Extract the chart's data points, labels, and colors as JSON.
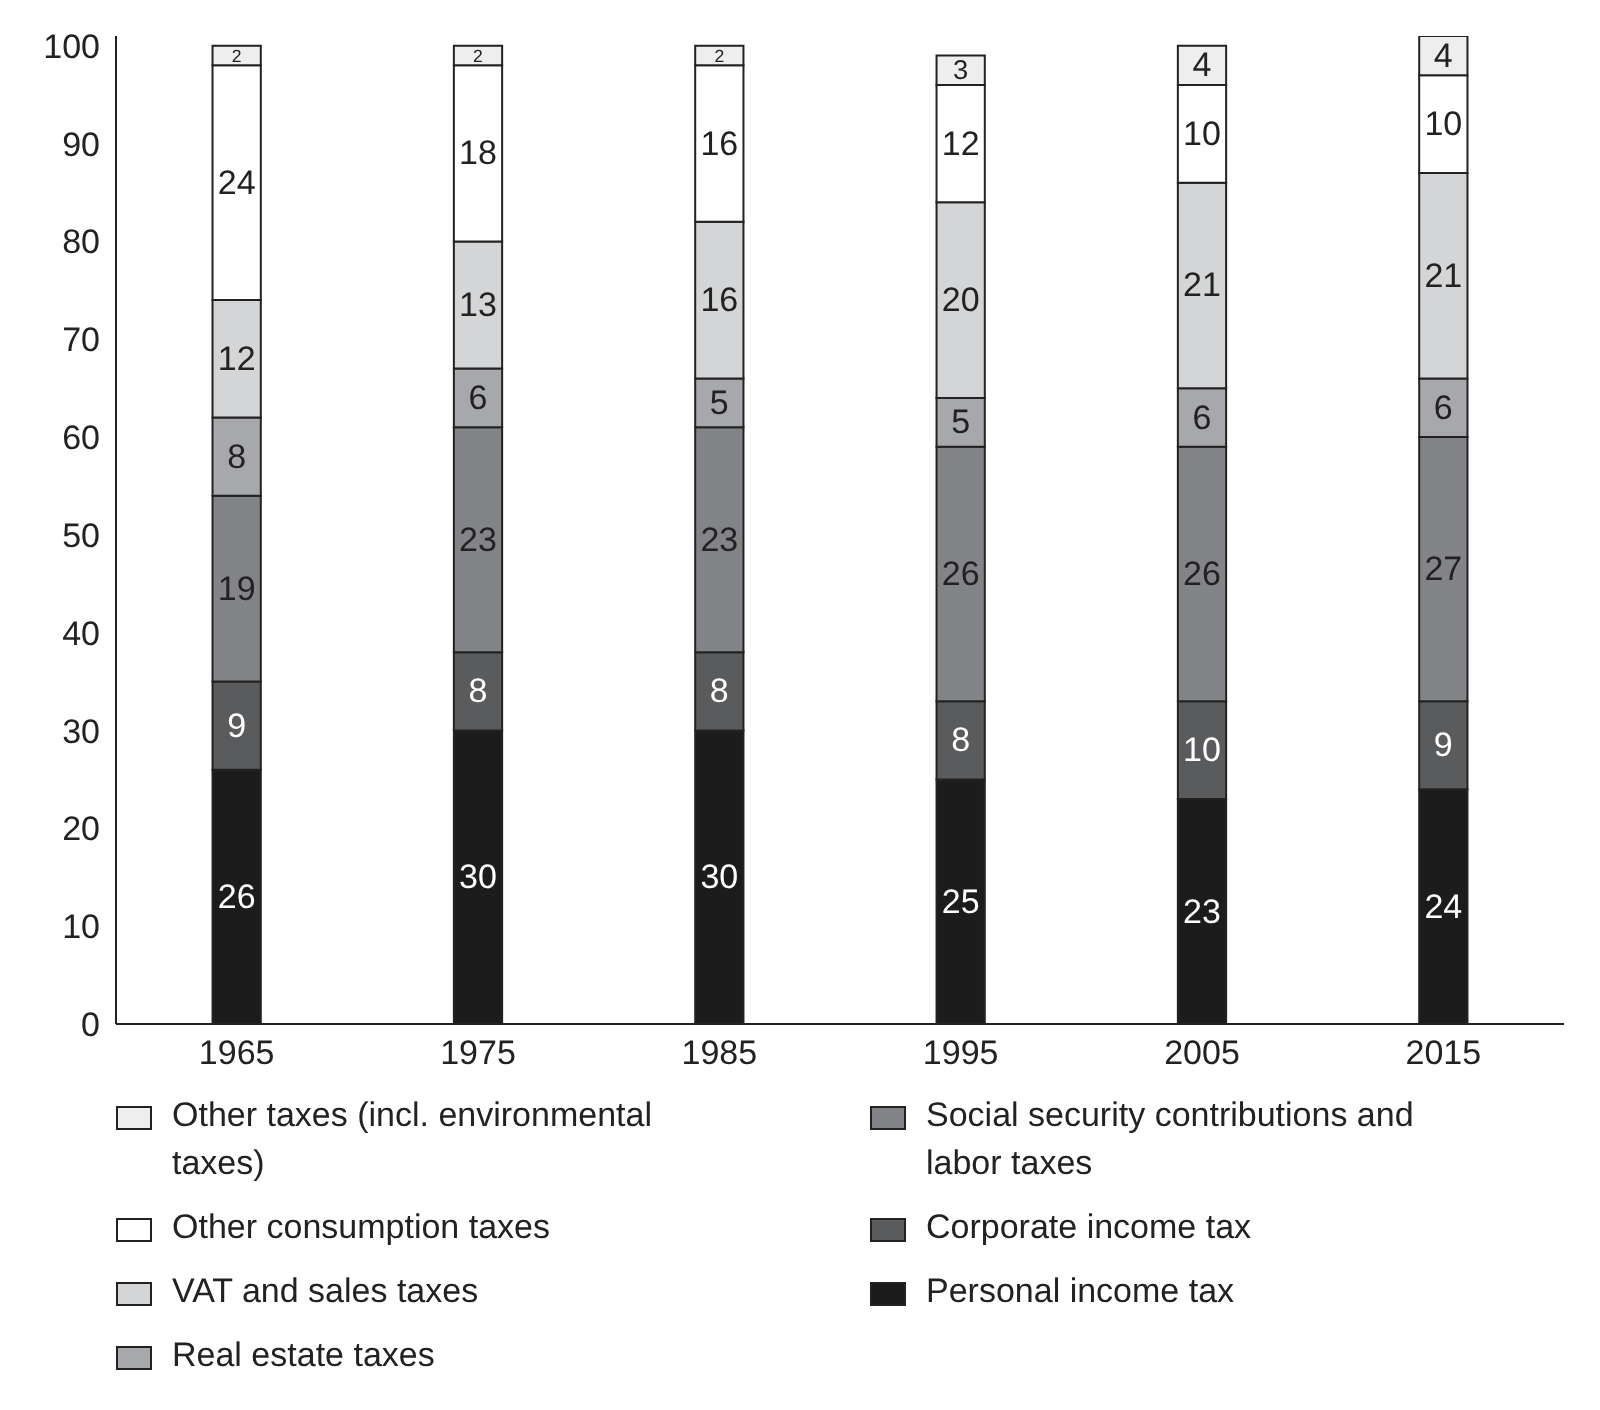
{
  "chart_data": {
    "type": "bar",
    "stacked": true,
    "categories": [
      "1965",
      "1975",
      "1985",
      "1995",
      "2005",
      "2015"
    ],
    "series": [
      {
        "name": "Personal income tax",
        "color": "#1c1c1c",
        "values": [
          26,
          30,
          30,
          25,
          23,
          24
        ]
      },
      {
        "name": "Corporate income tax",
        "color": "#5a5b5d",
        "values": [
          9,
          8,
          8,
          8,
          10,
          9
        ]
      },
      {
        "name": "Social security contributions and labor taxes",
        "color": "#838487",
        "values": [
          19,
          23,
          23,
          26,
          26,
          27
        ]
      },
      {
        "name": "Real estate taxes",
        "color": "#a7a8ab",
        "values": [
          8,
          6,
          5,
          5,
          6,
          6
        ]
      },
      {
        "name": "VAT and sales taxes",
        "color": "#d4d5d7",
        "values": [
          12,
          13,
          16,
          20,
          21,
          21
        ]
      },
      {
        "name": "Other consumption taxes",
        "color": "#ffffff",
        "values": [
          24,
          18,
          16,
          12,
          10,
          10
        ]
      },
      {
        "name": "Other taxes (incl. environmental taxes)",
        "color": "#eeeeee",
        "values": [
          2,
          2,
          2,
          3,
          4,
          4
        ]
      }
    ],
    "ylim": [
      0,
      101
    ],
    "yticks": [
      0,
      10,
      20,
      30,
      40,
      50,
      60,
      70,
      80,
      90,
      100
    ],
    "grid": false,
    "legend": "bottom",
    "data_labels": true
  }
}
